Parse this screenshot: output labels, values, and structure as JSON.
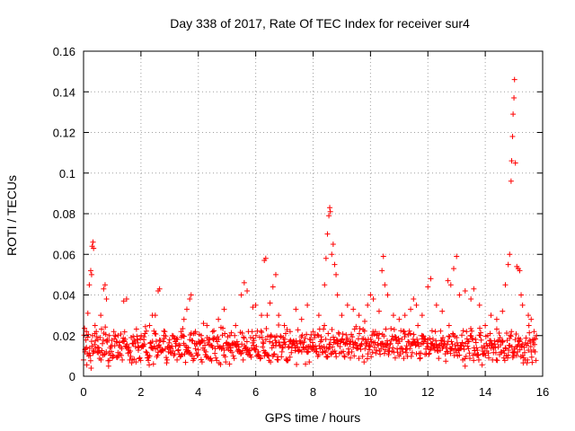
{
  "chart_data": {
    "type": "scatter",
    "title": "Day 338 of 2017, Rate Of TEC Index for receiver sur4",
    "xlabel": "GPS time / hours",
    "ylabel": "ROTI / TECUs",
    "xlim": [
      0,
      16
    ],
    "ylim": [
      0,
      0.16
    ],
    "xticks": [
      0,
      2,
      4,
      6,
      8,
      10,
      12,
      14,
      16
    ],
    "xtick_labels": [
      "0",
      "2",
      "4",
      "6",
      "8",
      "10",
      "12",
      "14",
      "16"
    ],
    "yticks": [
      0,
      0.02,
      0.04,
      0.06,
      0.08,
      0.1,
      0.12,
      0.14,
      0.16
    ],
    "ytick_labels": [
      "0",
      "0.02",
      "0.04",
      "0.06",
      "0.08",
      "0.1",
      "0.12",
      "0.14",
      "0.16"
    ],
    "grid": true,
    "marker": "+",
    "marker_color": "#ff0000",
    "series": [
      {
        "name": "ROTI",
        "points": [
          [
            0.05,
            0.012
          ],
          [
            0.1,
            0.022
          ],
          [
            0.15,
            0.031
          ],
          [
            0.2,
            0.045
          ],
          [
            0.25,
            0.052
          ],
          [
            0.28,
            0.05
          ],
          [
            0.3,
            0.064
          ],
          [
            0.33,
            0.066
          ],
          [
            0.35,
            0.063
          ],
          [
            0.4,
            0.025
          ],
          [
            0.5,
            0.018
          ],
          [
            0.6,
            0.03
          ],
          [
            0.7,
            0.043
          ],
          [
            0.75,
            0.045
          ],
          [
            0.8,
            0.038
          ],
          [
            0.9,
            0.02
          ],
          [
            1.0,
            0.015
          ],
          [
            1.2,
            0.02
          ],
          [
            1.4,
            0.037
          ],
          [
            1.5,
            0.038
          ],
          [
            1.7,
            0.016
          ],
          [
            1.9,
            0.014
          ],
          [
            2.1,
            0.018
          ],
          [
            2.3,
            0.025
          ],
          [
            2.4,
            0.03
          ],
          [
            2.5,
            0.03
          ],
          [
            2.6,
            0.042
          ],
          [
            2.65,
            0.043
          ],
          [
            2.8,
            0.02
          ],
          [
            3.0,
            0.018
          ],
          [
            3.2,
            0.017
          ],
          [
            3.4,
            0.022
          ],
          [
            3.5,
            0.028
          ],
          [
            3.6,
            0.033
          ],
          [
            3.7,
            0.038
          ],
          [
            3.75,
            0.04
          ],
          [
            3.9,
            0.022
          ],
          [
            4.1,
            0.02
          ],
          [
            4.3,
            0.025
          ],
          [
            4.5,
            0.022
          ],
          [
            4.7,
            0.028
          ],
          [
            4.9,
            0.033
          ],
          [
            5.1,
            0.02
          ],
          [
            5.3,
            0.025
          ],
          [
            5.5,
            0.04
          ],
          [
            5.6,
            0.046
          ],
          [
            5.7,
            0.042
          ],
          [
            5.9,
            0.034
          ],
          [
            6.0,
            0.035
          ],
          [
            6.2,
            0.03
          ],
          [
            6.3,
            0.057
          ],
          [
            6.35,
            0.058
          ],
          [
            6.4,
            0.03
          ],
          [
            6.5,
            0.036
          ],
          [
            6.6,
            0.044
          ],
          [
            6.7,
            0.05
          ],
          [
            6.8,
            0.03
          ],
          [
            7.0,
            0.025
          ],
          [
            7.2,
            0.022
          ],
          [
            7.4,
            0.033
          ],
          [
            7.6,
            0.028
          ],
          [
            7.8,
            0.035
          ],
          [
            8.0,
            0.022
          ],
          [
            8.2,
            0.03
          ],
          [
            8.4,
            0.045
          ],
          [
            8.45,
            0.058
          ],
          [
            8.5,
            0.07
          ],
          [
            8.55,
            0.079
          ],
          [
            8.58,
            0.083
          ],
          [
            8.6,
            0.081
          ],
          [
            8.65,
            0.06
          ],
          [
            8.7,
            0.065
          ],
          [
            8.75,
            0.055
          ],
          [
            8.8,
            0.05
          ],
          [
            8.85,
            0.04
          ],
          [
            9.0,
            0.03
          ],
          [
            9.2,
            0.035
          ],
          [
            9.4,
            0.033
          ],
          [
            9.6,
            0.03
          ],
          [
            9.8,
            0.027
          ],
          [
            9.9,
            0.035
          ],
          [
            10.0,
            0.04
          ],
          [
            10.1,
            0.038
          ],
          [
            10.3,
            0.032
          ],
          [
            10.4,
            0.052
          ],
          [
            10.45,
            0.059
          ],
          [
            10.5,
            0.045
          ],
          [
            10.6,
            0.04
          ],
          [
            10.8,
            0.03
          ],
          [
            11.0,
            0.028
          ],
          [
            11.2,
            0.03
          ],
          [
            11.4,
            0.033
          ],
          [
            11.5,
            0.038
          ],
          [
            11.6,
            0.035
          ],
          [
            11.8,
            0.03
          ],
          [
            12.0,
            0.044
          ],
          [
            12.1,
            0.048
          ],
          [
            12.3,
            0.035
          ],
          [
            12.5,
            0.032
          ],
          [
            12.7,
            0.047
          ],
          [
            12.8,
            0.045
          ],
          [
            12.9,
            0.053
          ],
          [
            13.0,
            0.059
          ],
          [
            13.1,
            0.04
          ],
          [
            13.3,
            0.042
          ],
          [
            13.5,
            0.038
          ],
          [
            13.6,
            0.043
          ],
          [
            13.8,
            0.035
          ],
          [
            14.0,
            0.025
          ],
          [
            14.2,
            0.03
          ],
          [
            14.4,
            0.028
          ],
          [
            14.6,
            0.032
          ],
          [
            14.7,
            0.045
          ],
          [
            14.8,
            0.055
          ],
          [
            14.85,
            0.06
          ],
          [
            14.9,
            0.096
          ],
          [
            14.92,
            0.106
          ],
          [
            14.95,
            0.118
          ],
          [
            14.97,
            0.129
          ],
          [
            15.0,
            0.137
          ],
          [
            15.02,
            0.146
          ],
          [
            15.05,
            0.105
          ],
          [
            15.1,
            0.054
          ],
          [
            15.15,
            0.053
          ],
          [
            15.2,
            0.052
          ],
          [
            15.25,
            0.04
          ],
          [
            15.3,
            0.035
          ],
          [
            15.5,
            0.03
          ],
          [
            15.6,
            0.028
          ],
          [
            15.7,
            0.022
          ]
        ],
        "baseline_band": {
          "x_range": [
            0.0,
            15.8
          ],
          "values": [
            0.012,
            0.015,
            0.009,
            0.018,
            0.021,
            0.011,
            0.014,
            0.017,
            0.008,
            0.013,
            0.016,
            0.019,
            0.01,
            0.012,
            0.022,
            0.015,
            0.011,
            0.009,
            0.017,
            0.014,
            0.02,
            0.013,
            0.016,
            0.01,
            0.012,
            0.018,
            0.014,
            0.011,
            0.015,
            0.019,
            0.008,
            0.013,
            0.017,
            0.012,
            0.016,
            0.021,
            0.01,
            0.014,
            0.018,
            0.011,
            0.015,
            0.012,
            0.019,
            0.009,
            0.013,
            0.016,
            0.02,
            0.011,
            0.014,
            0.017,
            0.012,
            0.015,
            0.01,
            0.018,
            0.013,
            0.016,
            0.022,
            0.011,
            0.014,
            0.019,
            0.012,
            0.017,
            0.009,
            0.015,
            0.013,
            0.018,
            0.011,
            0.016,
            0.014,
            0.02,
            0.012,
            0.015,
            0.01,
            0.017,
            0.013,
            0.019,
            0.011,
            0.016,
            0.014,
            0.012,
            0.018,
            0.015,
            0.009,
            0.013,
            0.017,
            0.021,
            0.011,
            0.014,
            0.016,
            0.012,
            0.019,
            0.015,
            0.01,
            0.013,
            0.018,
            0.016,
            0.012,
            0.02,
            0.014,
            0.011,
            0.017,
            0.013,
            0.015,
            0.022,
            0.012,
            0.016,
            0.019,
            0.011,
            0.014,
            0.018,
            0.013,
            0.017,
            0.02,
            0.012,
            0.015,
            0.019,
            0.014,
            0.016,
            0.021,
            0.013,
            0.018,
            0.015,
            0.012,
            0.02,
            0.016,
            0.014,
            0.019,
            0.017,
            0.013,
            0.021,
            0.015,
            0.018,
            0.014,
            0.016,
            0.02,
            0.013,
            0.017,
            0.019,
            0.015,
            0.012,
            0.016,
            0.014,
            0.018,
            0.013,
            0.017,
            0.015,
            0.011,
            0.019,
            0.014,
            0.016,
            0.012,
            0.018,
            0.015,
            0.013,
            0.017,
            0.011,
            0.014,
            0.016,
            0.012,
            0.015
          ]
        }
      }
    ]
  }
}
